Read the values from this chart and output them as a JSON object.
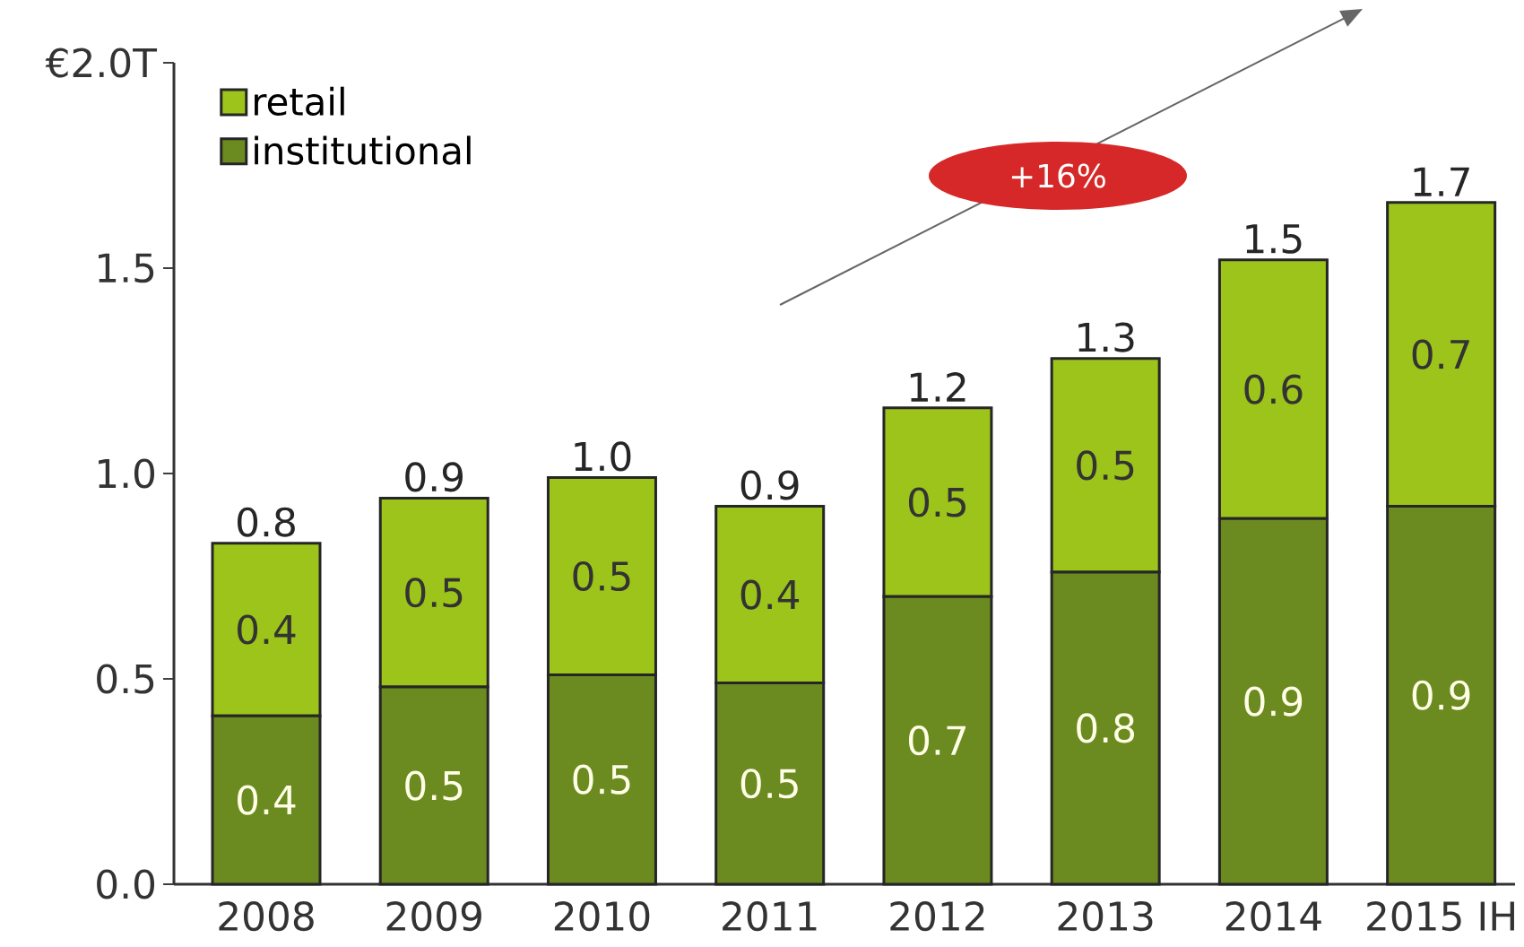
{
  "chart_data": {
    "type": "bar",
    "stacked": true,
    "categories": [
      "2008",
      "2009",
      "2010",
      "2011",
      "2012",
      "2013",
      "2014",
      "2015 IH"
    ],
    "series": [
      {
        "name": "institutional",
        "color": "#6b8a1f",
        "values": [
          0.41,
          0.48,
          0.51,
          0.49,
          0.7,
          0.76,
          0.89,
          0.92
        ],
        "value_labels": [
          "0.4",
          "0.5",
          "0.5",
          "0.5",
          "0.7",
          "0.8",
          "0.9",
          "0.9"
        ]
      },
      {
        "name": "retail",
        "color": "#9dc41a",
        "values": [
          0.42,
          0.46,
          0.48,
          0.43,
          0.46,
          0.52,
          0.63,
          0.74
        ],
        "value_labels": [
          "0.4",
          "0.5",
          "0.5",
          "0.4",
          "0.5",
          "0.5",
          "0.6",
          "0.7"
        ]
      }
    ],
    "totals": [
      "0.8",
      "0.9",
      "1.0",
      "0.9",
      "1.2",
      "1.3",
      "1.5",
      "1.7"
    ],
    "ylim": [
      0,
      2
    ],
    "yticks": [
      {
        "value": 0,
        "label": "0.0"
      },
      0.5,
      {
        "value": 1,
        "label": "1.0"
      },
      1.5,
      {
        "value": 2,
        "label": "€2.0T"
      }
    ],
    "legend": "top left",
    "annotations": [
      "+16%"
    ]
  }
}
